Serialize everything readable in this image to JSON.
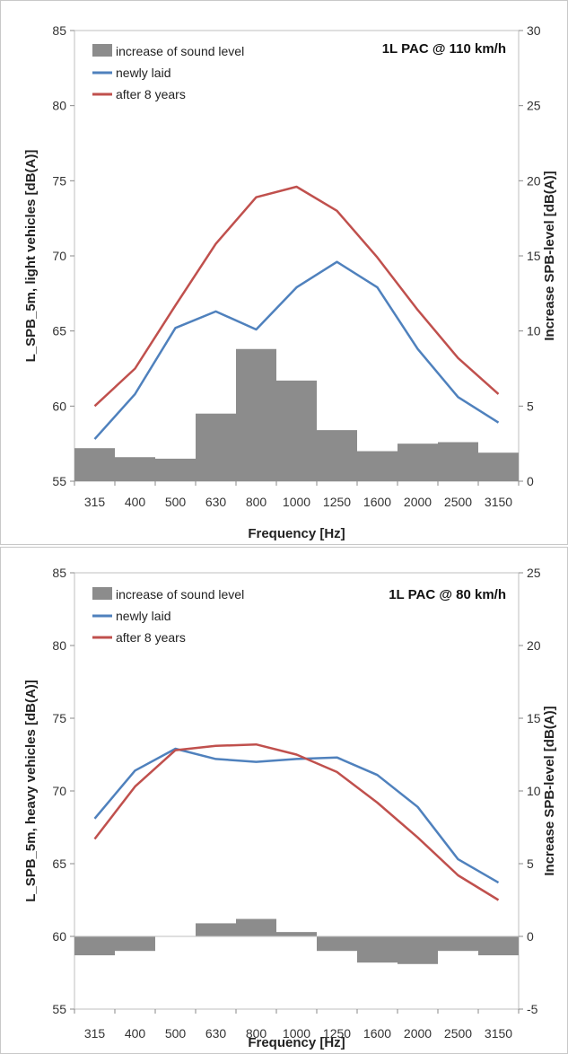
{
  "chart_data": [
    {
      "type": "bar+line",
      "annotation": "1L PAC @ 110 km/h",
      "xlabel": "Frequency [Hz]",
      "ylabel": "L_SPB_5m, light vehicles [dB(A)]",
      "y2label": "Increase SPB-level [dB(A)]",
      "categories": [
        "315",
        "400",
        "500",
        "630",
        "800",
        "1000",
        "1250",
        "1600",
        "2000",
        "2500",
        "3150"
      ],
      "ylim": [
        55,
        85
      ],
      "yticks": [
        55,
        60,
        65,
        70,
        75,
        80,
        85
      ],
      "y2lim": [
        0,
        30
      ],
      "y2ticks": [
        0,
        5,
        10,
        15,
        20,
        25,
        30
      ],
      "legend_position": "top-left",
      "bar_series": {
        "name": "increase of sound level",
        "axis": "right",
        "color": "#8c8c8c",
        "values": [
          2.2,
          1.6,
          1.5,
          4.5,
          8.8,
          6.7,
          3.4,
          2.0,
          2.5,
          2.6,
          1.9
        ]
      },
      "series": [
        {
          "name": "newly laid",
          "axis": "left",
          "color": "#4f81bd",
          "values": [
            57.8,
            60.8,
            65.2,
            66.3,
            65.1,
            67.9,
            69.6,
            67.9,
            63.8,
            60.6,
            58.9
          ]
        },
        {
          "name": "after 8 years",
          "axis": "left",
          "color": "#c0504d",
          "values": [
            60.0,
            62.5,
            66.7,
            70.8,
            73.9,
            74.6,
            73.0,
            69.9,
            66.4,
            63.2,
            60.8
          ]
        }
      ]
    },
    {
      "type": "bar+line",
      "annotation": "1L PAC @ 80 km/h",
      "xlabel": "Frequency [Hz]",
      "ylabel": "L_SPB_5m, heavy vehicles [dB(A)]",
      "y2label": "Increase SPB-level [dB(A)]",
      "categories": [
        "315",
        "400",
        "500",
        "630",
        "800",
        "1000",
        "1250",
        "1600",
        "2000",
        "2500",
        "3150"
      ],
      "ylim": [
        55,
        85
      ],
      "yticks": [
        55,
        60,
        65,
        70,
        75,
        80,
        85
      ],
      "y2lim": [
        -5,
        25
      ],
      "y2ticks": [
        -5,
        0,
        5,
        10,
        15,
        20,
        25
      ],
      "legend_position": "top-left",
      "bar_series": {
        "name": "increase of sound level",
        "axis": "right",
        "color": "#8c8c8c",
        "values": [
          -1.3,
          -1.0,
          0.0,
          0.9,
          1.2,
          0.3,
          -1.0,
          -1.8,
          -1.9,
          -1.0,
          -1.3
        ]
      },
      "series": [
        {
          "name": "newly laid",
          "axis": "left",
          "color": "#4f81bd",
          "values": [
            68.1,
            71.4,
            72.9,
            72.2,
            72.0,
            72.2,
            72.3,
            71.1,
            68.9,
            65.3,
            63.7
          ]
        },
        {
          "name": "after 8 years",
          "axis": "left",
          "color": "#c0504d",
          "values": [
            66.7,
            70.3,
            72.8,
            73.1,
            73.2,
            72.5,
            71.3,
            69.2,
            66.8,
            64.2,
            62.5
          ]
        }
      ]
    }
  ]
}
